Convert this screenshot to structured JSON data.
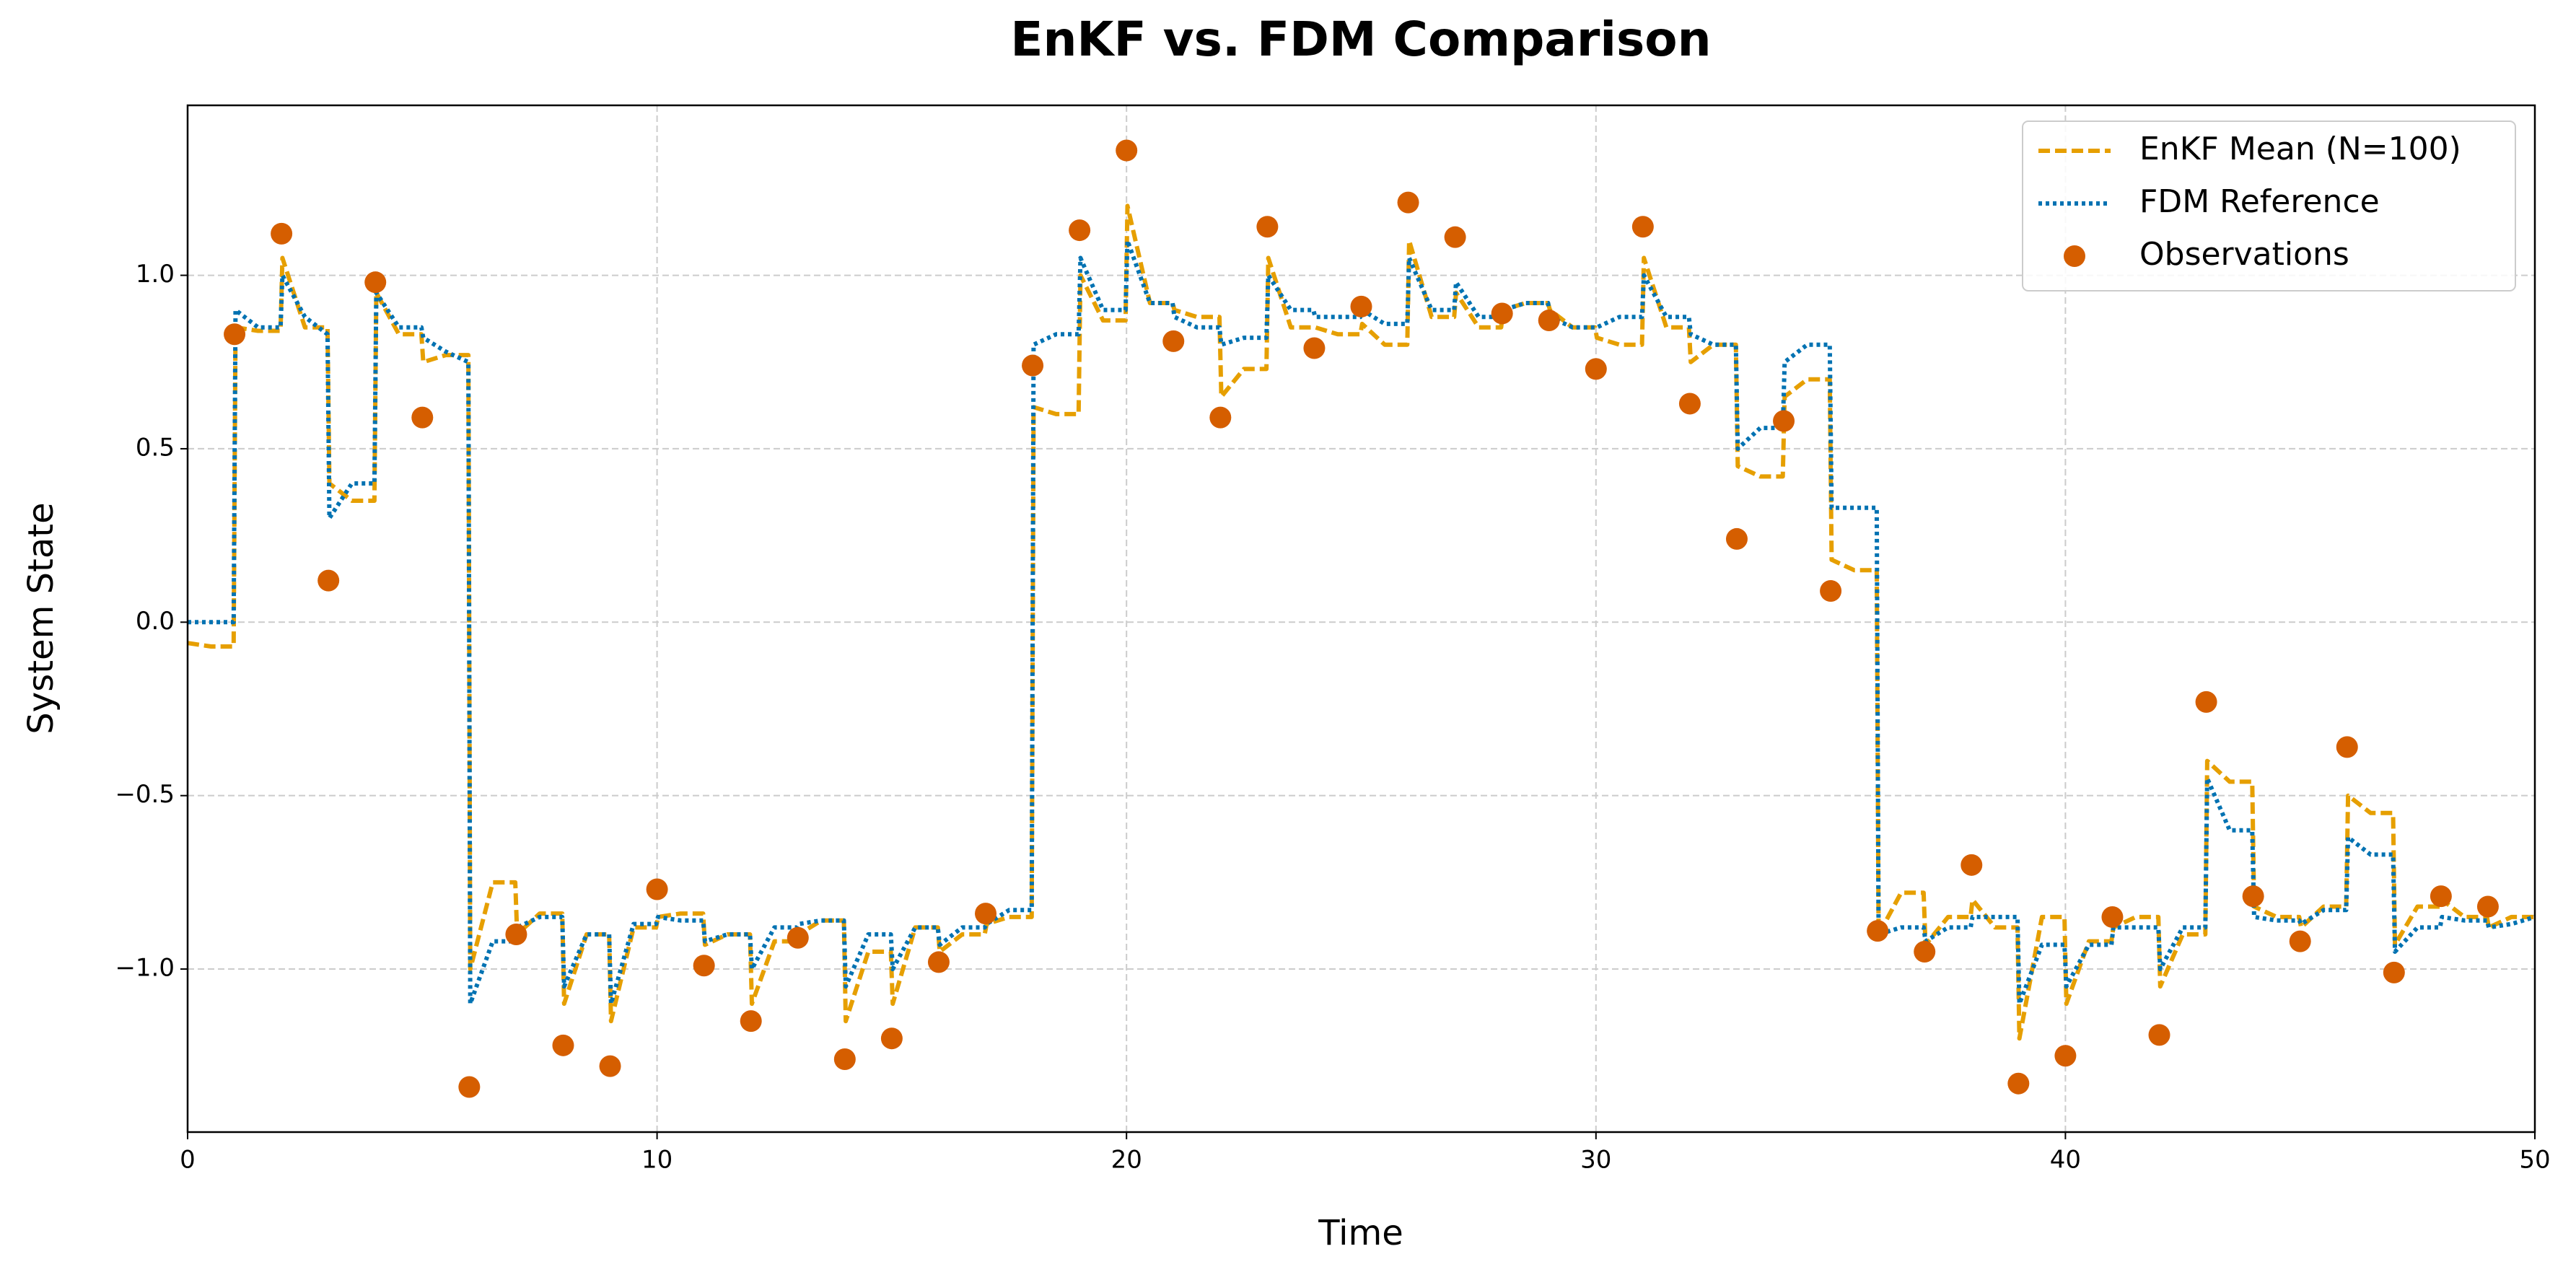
{
  "chart_data": {
    "type": "line",
    "title": "EnKF vs. FDM Comparison",
    "xlabel": "Time",
    "ylabel": "System State",
    "x": [
      0,
      0.5,
      0.98,
      1.02,
      1.5,
      1.98,
      2.02,
      2.5,
      2.98,
      3.02,
      3.5,
      3.98,
      4.02,
      4.5,
      4.98,
      5.02,
      5.5,
      5.98,
      6.02,
      6.5,
      6.98,
      7.02,
      7.5,
      7.98,
      8.02,
      8.5,
      8.98,
      9.02,
      9.5,
      9.98,
      10.02,
      10.5,
      10.98,
      11.02,
      11.5,
      11.98,
      12.02,
      12.5,
      12.98,
      13.02,
      13.5,
      13.98,
      14.02,
      14.5,
      14.98,
      15.02,
      15.5,
      15.98,
      16.02,
      16.5,
      16.98,
      17.02,
      17.5,
      17.98,
      18.02,
      18.5,
      18.98,
      19.02,
      19.5,
      19.98,
      20.02,
      20.5,
      20.98,
      21.02,
      21.5,
      21.98,
      22.02,
      22.5,
      22.98,
      23.02,
      23.5,
      23.98,
      24.02,
      24.5,
      24.98,
      25.02,
      25.5,
      25.98,
      26.02,
      26.5,
      26.98,
      27.02,
      27.5,
      27.98,
      28.02,
      28.5,
      28.98,
      29.02,
      29.5,
      29.98,
      30.02,
      30.5,
      30.98,
      31.02,
      31.5,
      31.98,
      32.02,
      32.5,
      32.98,
      33.02,
      33.5,
      33.98,
      34.02,
      34.5,
      34.98,
      35.02,
      35.5,
      35.98,
      36.02,
      36.5,
      36.98,
      37.02,
      37.5,
      37.98,
      38.02,
      38.5,
      38.98,
      39.02,
      39.5,
      39.98,
      40.02,
      40.5,
      40.98,
      41.02,
      41.5,
      41.98,
      42.02,
      42.5,
      42.98,
      43.02,
      43.5,
      43.98,
      44.02,
      44.5,
      44.98,
      45.02,
      45.5,
      45.98,
      46.02,
      46.5,
      46.98,
      47.02,
      47.5,
      47.98,
      48.02,
      48.5,
      48.98,
      49.02,
      49.5,
      50
    ],
    "series": [
      {
        "name": "EnKF Mean (N=100)",
        "color": "#E69F00",
        "linestyle": "dashed",
        "values": [
          -0.06,
          -0.07,
          -0.07,
          0.85,
          0.84,
          0.84,
          1.05,
          0.85,
          0.85,
          0.4,
          0.35,
          0.35,
          0.95,
          0.83,
          0.83,
          0.75,
          0.77,
          0.77,
          -1.0,
          -0.75,
          -0.75,
          -0.9,
          -0.84,
          -0.84,
          -1.1,
          -0.9,
          -0.9,
          -1.15,
          -0.88,
          -0.88,
          -0.85,
          -0.84,
          -0.84,
          -0.93,
          -0.9,
          -0.9,
          -1.1,
          -0.92,
          -0.92,
          -0.9,
          -0.86,
          -0.86,
          -1.15,
          -0.95,
          -0.95,
          -1.1,
          -0.88,
          -0.88,
          -0.95,
          -0.9,
          -0.9,
          -0.87,
          -0.85,
          -0.85,
          0.62,
          0.6,
          0.6,
          1.0,
          0.87,
          0.87,
          1.2,
          0.92,
          0.92,
          0.9,
          0.88,
          0.88,
          0.65,
          0.73,
          0.73,
          1.05,
          0.85,
          0.85,
          0.85,
          0.83,
          0.83,
          0.86,
          0.8,
          0.8,
          1.1,
          0.88,
          0.88,
          0.95,
          0.85,
          0.85,
          0.9,
          0.92,
          0.92,
          0.9,
          0.85,
          0.85,
          0.82,
          0.8,
          0.8,
          1.05,
          0.85,
          0.85,
          0.75,
          0.8,
          0.8,
          0.45,
          0.42,
          0.42,
          0.65,
          0.7,
          0.7,
          0.18,
          0.15,
          0.15,
          -0.9,
          -0.78,
          -0.78,
          -0.93,
          -0.85,
          -0.85,
          -0.8,
          -0.88,
          -0.88,
          -1.2,
          -0.85,
          -0.85,
          -1.1,
          -0.92,
          -0.92,
          -0.88,
          -0.85,
          -0.85,
          -1.05,
          -0.9,
          -0.9,
          -0.4,
          -0.46,
          -0.46,
          -0.82,
          -0.85,
          -0.85,
          -0.88,
          -0.82,
          -0.82,
          -0.5,
          -0.55,
          -0.55,
          -0.93,
          -0.82,
          -0.82,
          -0.8,
          -0.85,
          -0.85,
          -0.88,
          -0.85,
          -0.85
        ]
      },
      {
        "name": "FDM Reference",
        "color": "#0072B2",
        "linestyle": "dotted",
        "values": [
          0,
          0,
          0,
          0.9,
          0.85,
          0.85,
          1.0,
          0.88,
          0.83,
          0.3,
          0.4,
          0.4,
          0.95,
          0.85,
          0.85,
          0.82,
          0.78,
          0.75,
          -1.1,
          -0.92,
          -0.92,
          -0.88,
          -0.85,
          -0.85,
          -1.05,
          -0.9,
          -0.9,
          -1.1,
          -0.87,
          -0.87,
          -0.85,
          -0.86,
          -0.86,
          -0.92,
          -0.9,
          -0.9,
          -1.0,
          -0.88,
          -0.88,
          -0.87,
          -0.86,
          -0.86,
          -1.05,
          -0.9,
          -0.9,
          -1.0,
          -0.88,
          -0.88,
          -0.93,
          -0.88,
          -0.88,
          -0.87,
          -0.83,
          -0.83,
          0.8,
          0.83,
          0.83,
          1.05,
          0.9,
          0.9,
          1.1,
          0.92,
          0.92,
          0.88,
          0.85,
          0.85,
          0.8,
          0.82,
          0.82,
          1.0,
          0.9,
          0.9,
          0.88,
          0.88,
          0.88,
          0.9,
          0.86,
          0.86,
          1.05,
          0.9,
          0.9,
          0.98,
          0.88,
          0.88,
          0.9,
          0.92,
          0.92,
          0.88,
          0.85,
          0.85,
          0.85,
          0.88,
          0.88,
          1.0,
          0.88,
          0.88,
          0.83,
          0.8,
          0.8,
          0.5,
          0.56,
          0.56,
          0.75,
          0.8,
          0.8,
          0.33,
          0.33,
          0.33,
          -0.9,
          -0.88,
          -0.88,
          -0.92,
          -0.88,
          -0.88,
          -0.85,
          -0.85,
          -0.85,
          -1.1,
          -0.93,
          -0.93,
          -1.05,
          -0.93,
          -0.93,
          -0.88,
          -0.88,
          -0.88,
          -1.0,
          -0.88,
          -0.88,
          -0.45,
          -0.6,
          -0.6,
          -0.85,
          -0.86,
          -0.86,
          -0.87,
          -0.83,
          -0.83,
          -0.62,
          -0.67,
          -0.67,
          -0.95,
          -0.88,
          -0.88,
          -0.85,
          -0.86,
          -0.86,
          -0.88,
          -0.87,
          -0.85
        ]
      }
    ],
    "observations": {
      "name": "Observations",
      "color": "#D55E00",
      "x": [
        1,
        2,
        3,
        4,
        5,
        6,
        7,
        8,
        9,
        10,
        11,
        12,
        13,
        14,
        15,
        16,
        17,
        18,
        19,
        20,
        21,
        22,
        23,
        24,
        25,
        26,
        27,
        28,
        29,
        30,
        31,
        32,
        33,
        34,
        35,
        36,
        37,
        38,
        39,
        40,
        41,
        42,
        43,
        44,
        45,
        46,
        47,
        48,
        49
      ],
      "y": [
        0.83,
        1.12,
        0.12,
        0.98,
        0.59,
        -1.34,
        -0.9,
        -1.22,
        -1.28,
        -0.77,
        -0.99,
        -1.15,
        -0.91,
        -1.26,
        -1.2,
        -0.98,
        -0.84,
        0.74,
        1.13,
        1.36,
        0.81,
        0.59,
        1.14,
        0.79,
        0.91,
        1.21,
        1.11,
        0.89,
        0.87,
        0.73,
        1.14,
        0.63,
        0.24,
        0.58,
        0.09,
        -0.89,
        -0.95,
        -0.7,
        -1.33,
        -1.25,
        -0.85,
        -1.19,
        -0.23,
        -0.79,
        -0.92,
        -0.36,
        -1.01,
        -0.79,
        -0.82
      ]
    },
    "xlim": [
      0,
      50
    ],
    "ylim": [
      -1.47,
      1.49
    ],
    "xticks": [
      0,
      10,
      20,
      30,
      40,
      50
    ],
    "yticks": [
      {
        "value": -1,
        "label": "−1.0"
      },
      {
        "value": -0.5,
        "label": "−0.5"
      },
      {
        "value": 0,
        "label": "0.0"
      },
      {
        "value": 0.5,
        "label": "0.5"
      },
      {
        "value": 1,
        "label": "1.0"
      }
    ],
    "grid": true,
    "legend": "upper right"
  }
}
